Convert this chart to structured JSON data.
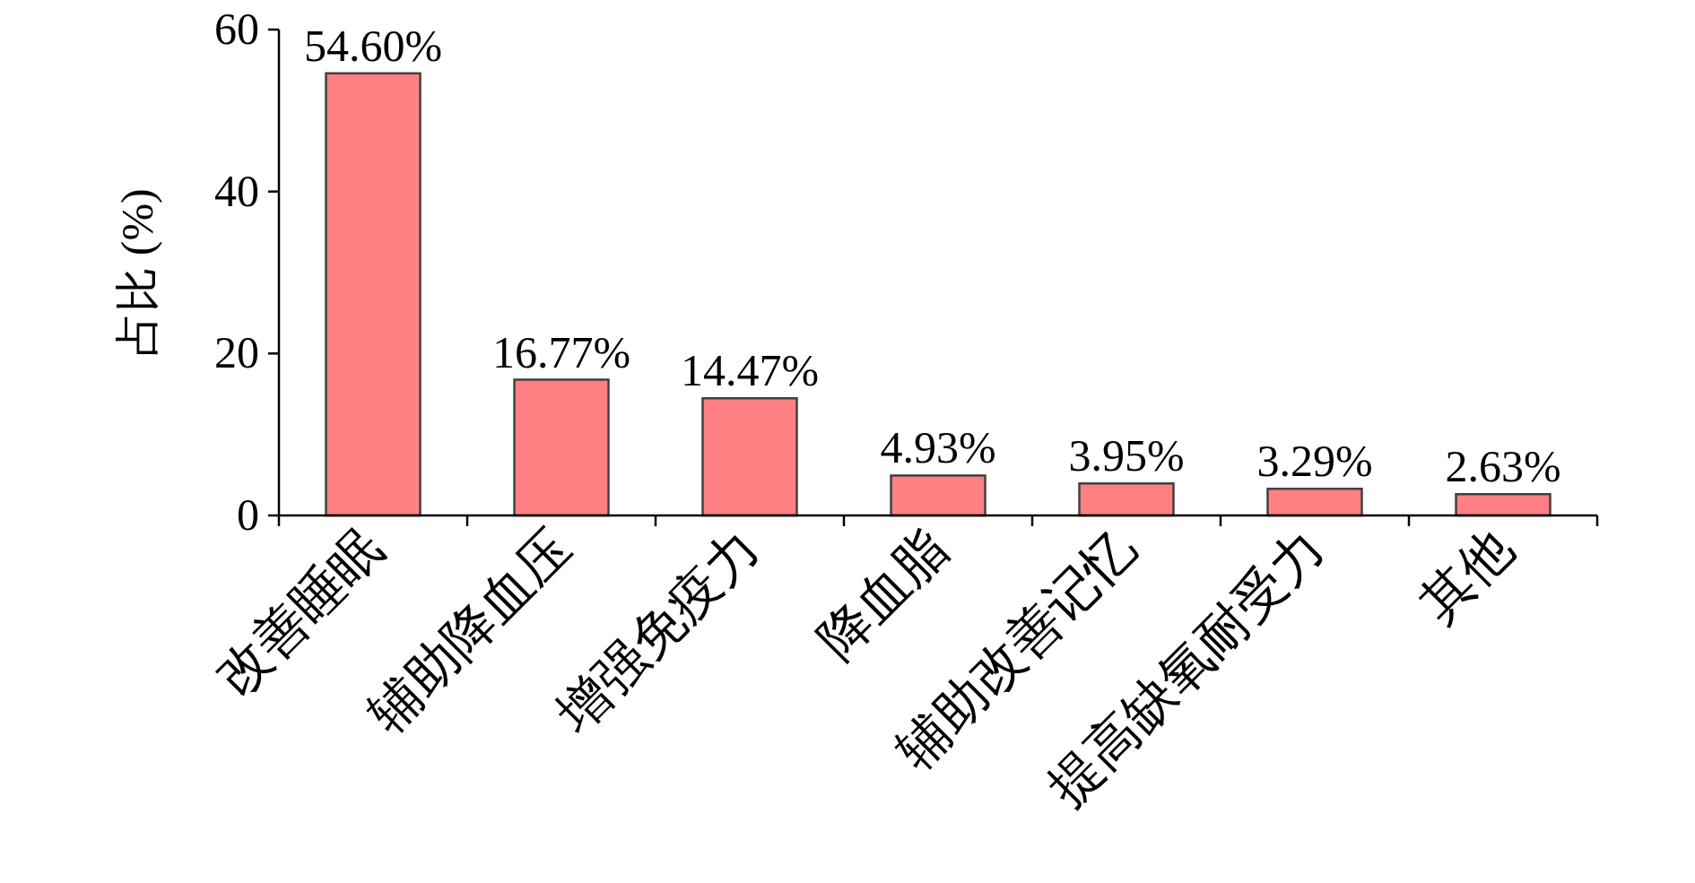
{
  "chart_data": {
    "type": "bar",
    "ylabel": "占比 (%)",
    "categories": [
      "改善睡眠",
      "辅助降血压",
      "增强免疫力",
      "降血脂",
      "辅助改善记忆",
      "提高缺氧耐受力",
      "其他"
    ],
    "values": [
      54.6,
      16.77,
      14.47,
      4.93,
      3.95,
      3.29,
      2.63
    ],
    "value_labels": [
      "54.60%",
      "16.77%",
      "14.47%",
      "4.93%",
      "3.95%",
      "3.29%",
      "2.63%"
    ],
    "color": "#ff8082",
    "ylim": [
      0,
      60
    ],
    "yticks": [
      0,
      20,
      40,
      60
    ],
    "grid": false
  }
}
